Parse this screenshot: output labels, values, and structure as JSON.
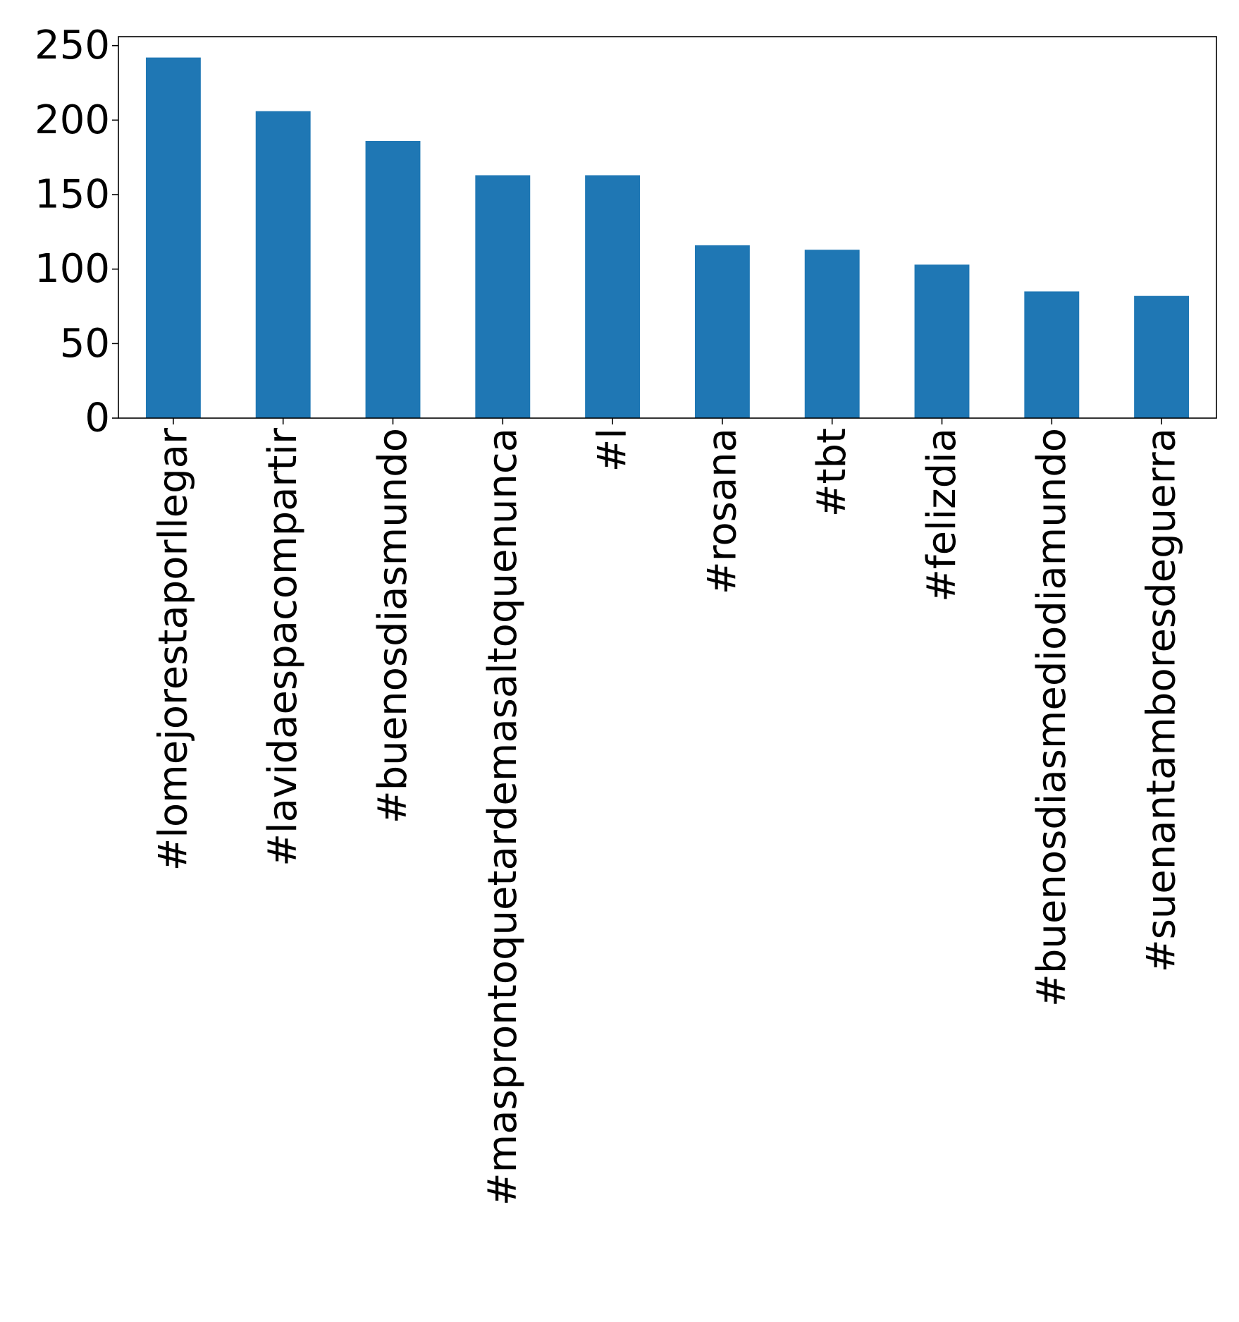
{
  "chart_data": {
    "type": "bar",
    "title": "",
    "xlabel": "",
    "ylabel": "",
    "categories": [
      "#lomejorestaporllegar",
      "#lavidaespacompartir",
      "#buenosdiasmundo",
      "#masprontoquetardemasaltoquenunca",
      "#l",
      "#rosana",
      "#tbt",
      "#felizdia",
      "#buenosdiasmediodiamundo",
      "#suenantamboresdeguerra"
    ],
    "values": [
      242,
      206,
      186,
      163,
      163,
      116,
      113,
      103,
      85,
      82
    ],
    "ylim": [
      0,
      256
    ],
    "yticks": [
      0,
      50,
      100,
      150,
      200,
      250
    ],
    "ytick_labels": [
      "0",
      "50",
      "100",
      "150",
      "200",
      "250"
    ],
    "bar_color": "#1f77b4",
    "grid": false,
    "legend": "none"
  }
}
